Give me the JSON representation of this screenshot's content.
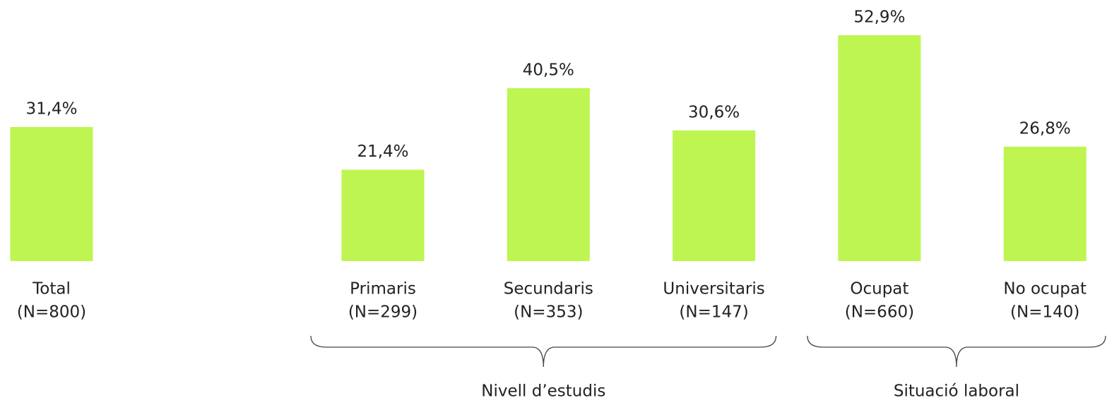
{
  "chart_data": {
    "type": "bar",
    "categories": [
      "Total",
      "Primaris",
      "Secundaris",
      "Universitaris",
      "Ocupat",
      "No ocupat"
    ],
    "sample_sizes": [
      "(N=800)",
      "(N=299)",
      "(N=353)",
      "(N=147)",
      "(N=660)",
      "(N=140)"
    ],
    "values": [
      31.4,
      21.4,
      40.5,
      30.6,
      52.9,
      26.8
    ],
    "value_labels": [
      "31,4%",
      "21,4%",
      "40,5%",
      "30,6%",
      "52,9%",
      "26,8%"
    ],
    "color": "#bef551",
    "ylim": [
      0,
      60
    ],
    "groups": [
      {
        "label": "Nivell d’estudis",
        "members": [
          1,
          2,
          3
        ]
      },
      {
        "label": "Situació laboral",
        "members": [
          4,
          5
        ]
      }
    ]
  }
}
